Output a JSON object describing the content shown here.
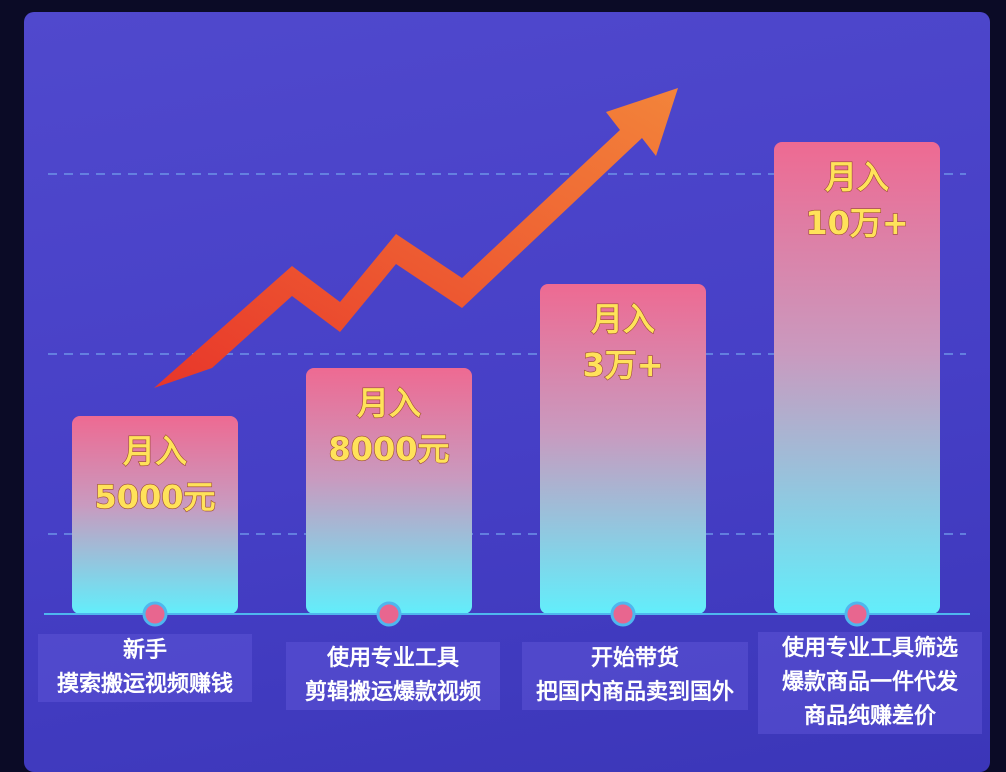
{
  "chart_data": {
    "type": "bar",
    "categories": [
      [
        "新手",
        "摸索搬运视频赚钱"
      ],
      [
        "使用专业工具",
        "剪辑搬运爆款视频"
      ],
      [
        "开始带货",
        "把国内商品卖到国外"
      ],
      [
        "使用专业工具筛选",
        "爆款商品一件代发",
        "商品纯赚差价"
      ]
    ],
    "values": [
      5000,
      8000,
      30000,
      100000
    ],
    "bar_labels": [
      [
        "月入",
        "5000元"
      ],
      [
        "月入",
        "8000元"
      ],
      [
        "月入",
        "3万+"
      ],
      [
        "月入",
        "10万+"
      ]
    ],
    "grid": true,
    "trend_arrow": true
  },
  "colors": {
    "bar_top": "#ee6a92",
    "bar_bottom": "#62eefb",
    "label_text": "#ffe25a",
    "arrow_start": "#e8362a",
    "arrow_end": "#f3843a"
  }
}
